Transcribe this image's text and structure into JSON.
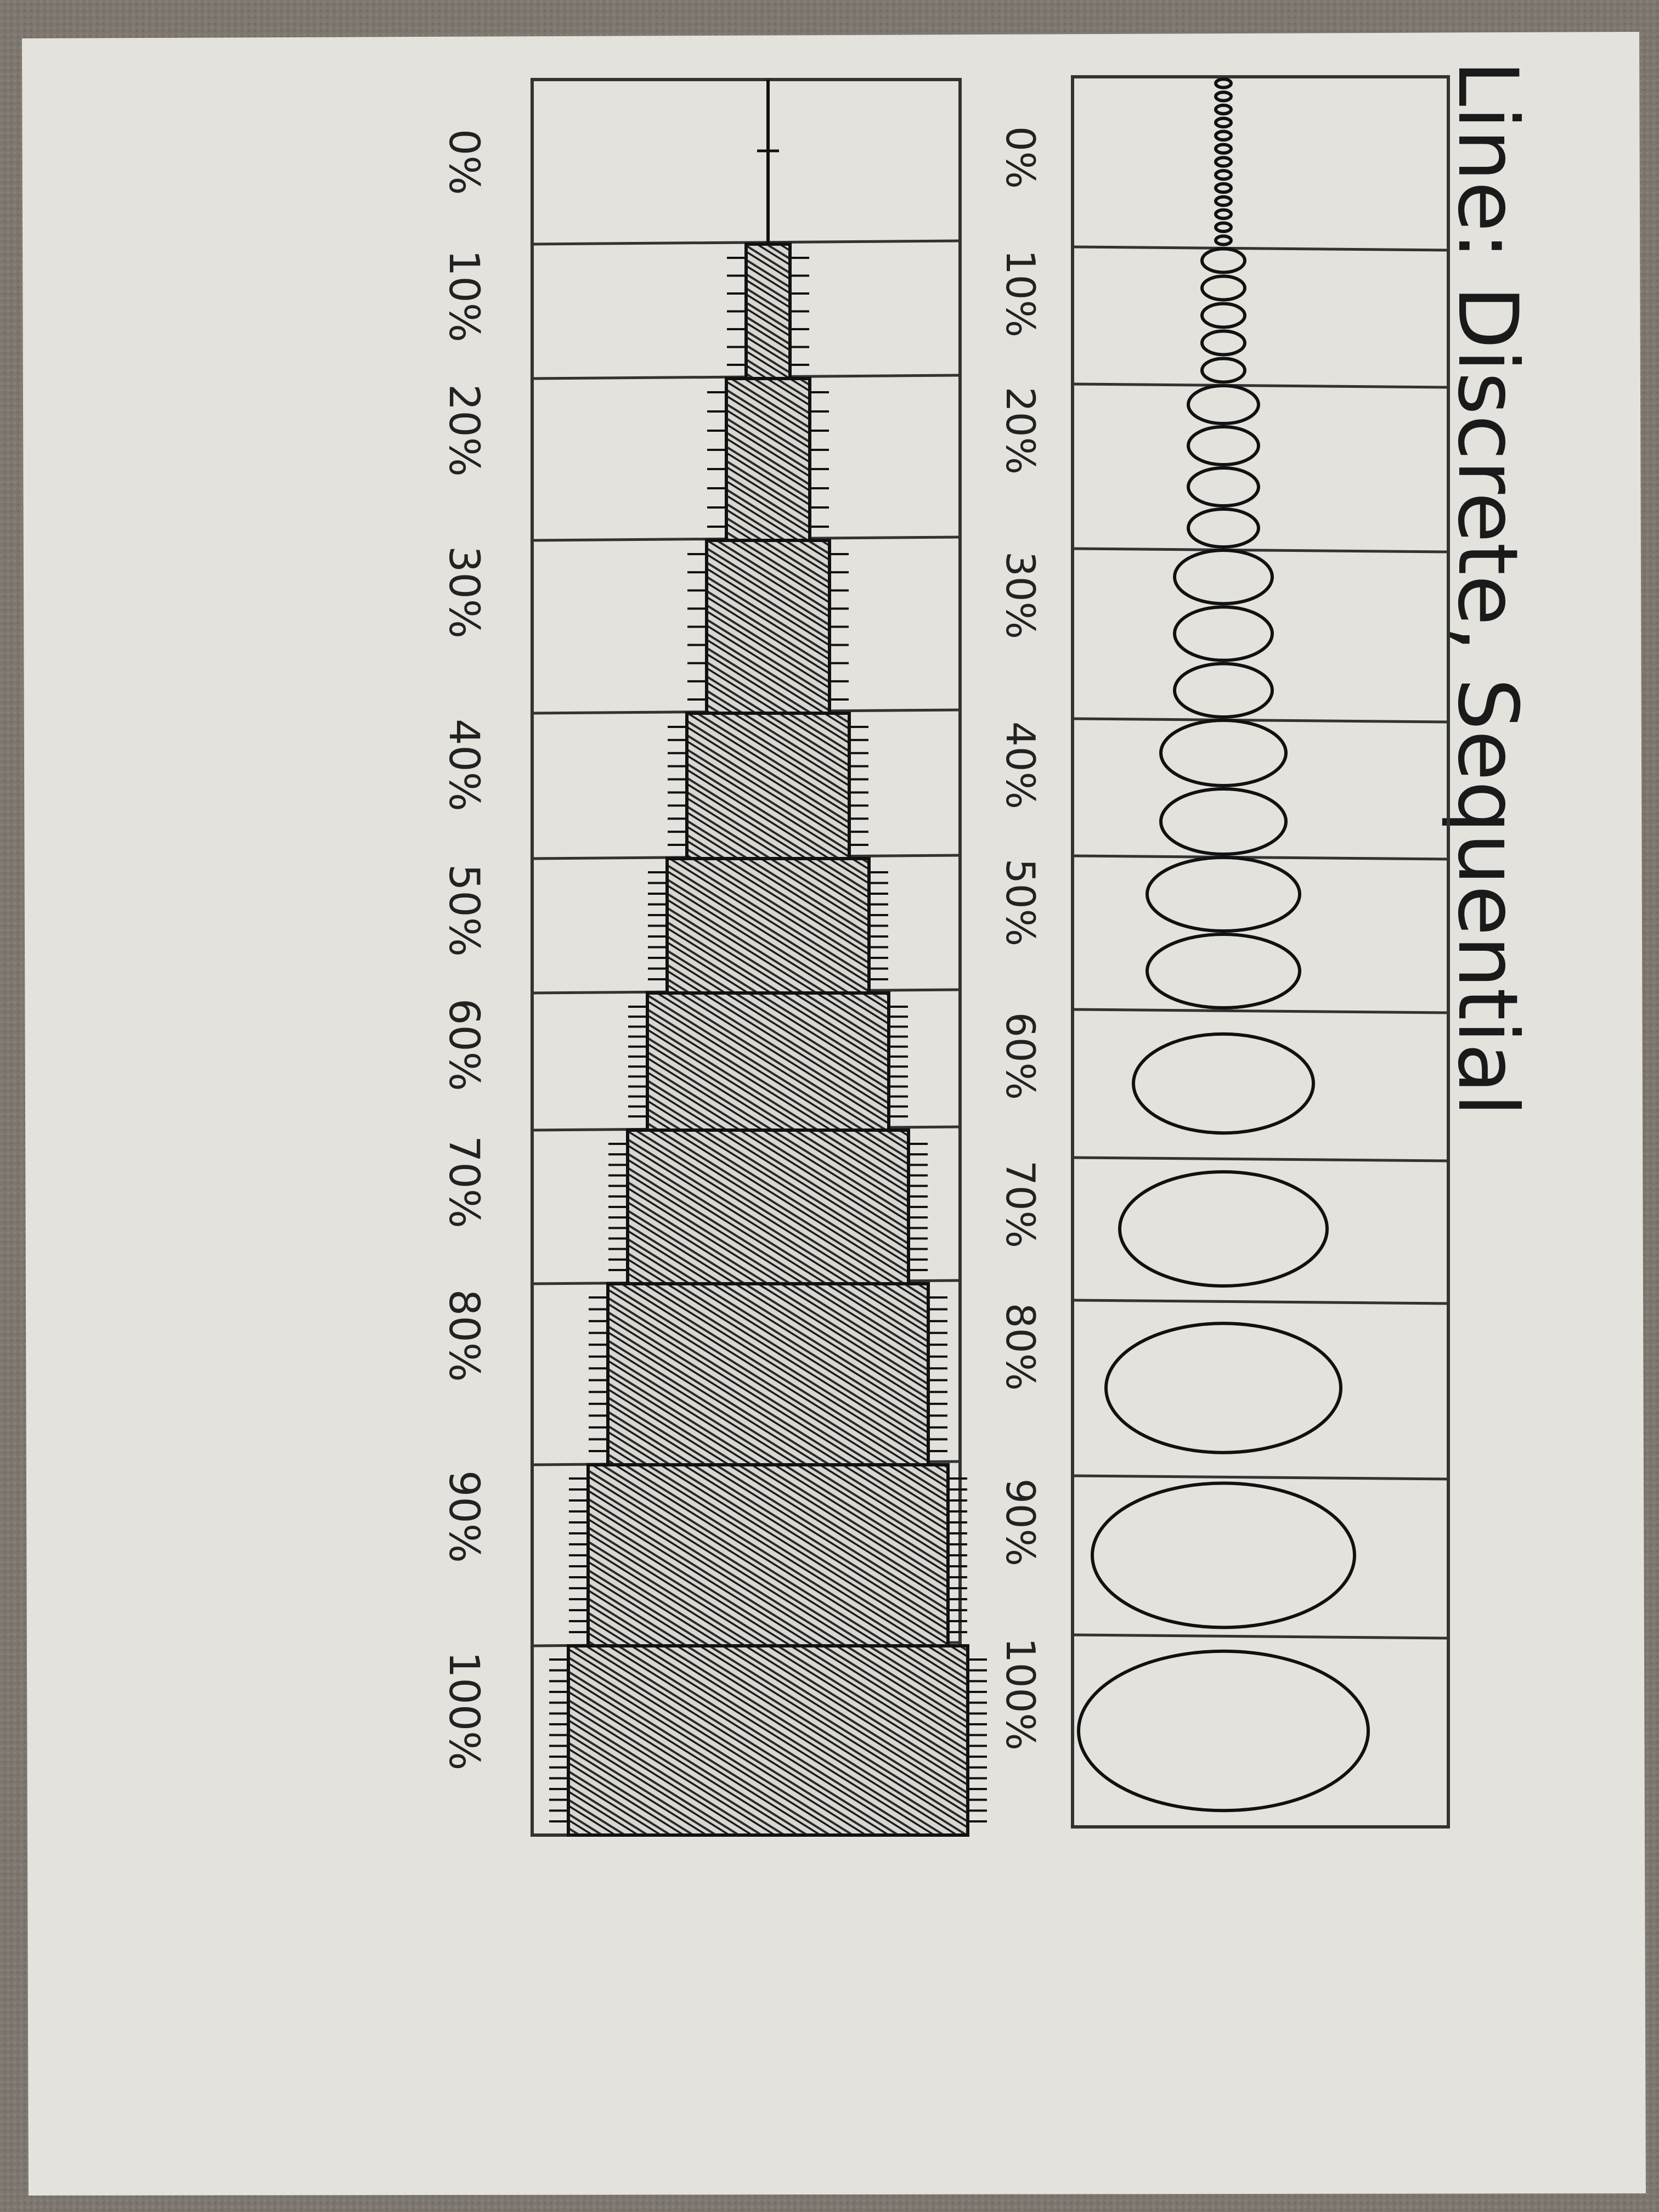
{
  "title": "Line: Discrete, Sequential",
  "top_scale": {
    "tick_labels": [
      "0%",
      "10%",
      "20%",
      "30%",
      "40%",
      "50%",
      "60%",
      "70%",
      "80%",
      "90%",
      "100%"
    ],
    "levels": [
      0,
      10,
      20,
      30,
      40,
      50,
      60,
      70,
      80,
      90,
      100
    ]
  },
  "bottom_scale": {
    "tick_labels": [
      "0%",
      "10%",
      "20%",
      "30%",
      "40%",
      "50%",
      "60%",
      "70%",
      "80%",
      "90%",
      "100%"
    ],
    "levels": [
      0,
      10,
      20,
      30,
      40,
      50,
      60,
      70,
      80,
      90,
      100
    ]
  },
  "colors": {
    "ink": "#1a1a1a",
    "paper": "#e4e2dc",
    "carpet": "#7d776f"
  }
}
